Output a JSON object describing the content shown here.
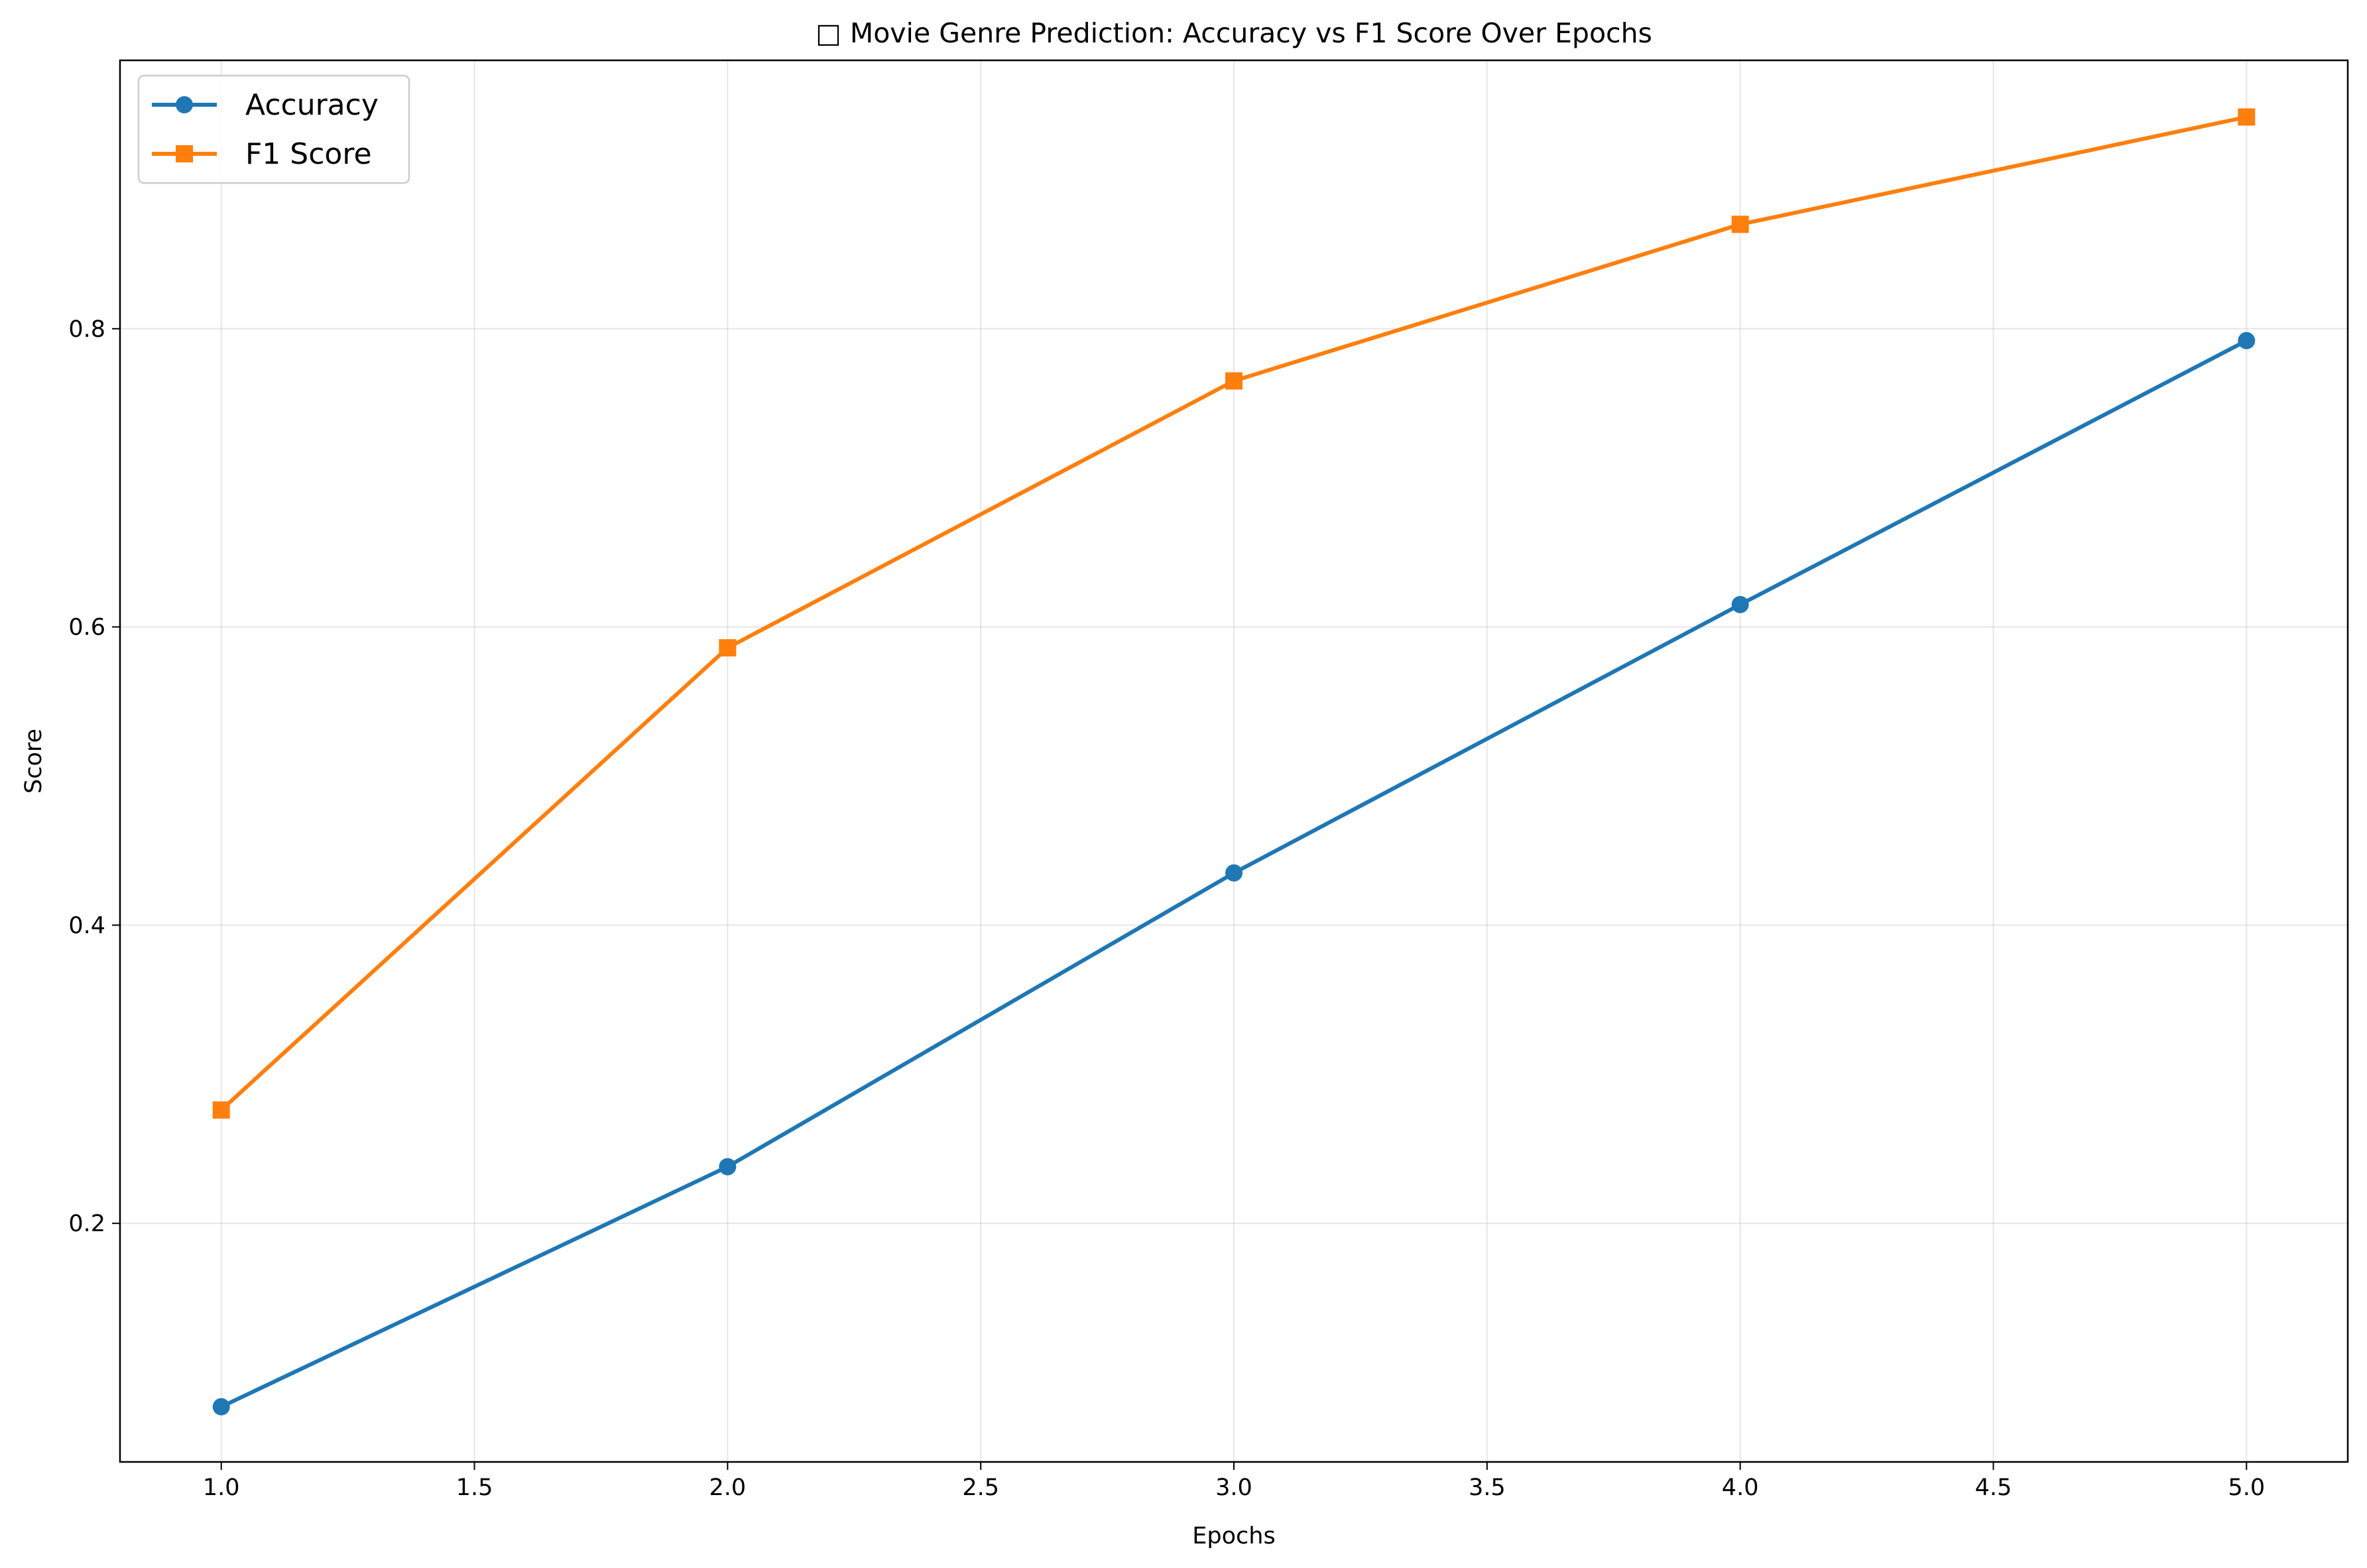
{
  "chart_data": {
    "type": "line",
    "title": "□ Movie Genre Prediction: Accuracy vs F1 Score Over Epochs",
    "xlabel": "Epochs",
    "ylabel": "Score",
    "xlim": [
      0.8,
      5.2
    ],
    "ylim": [
      0.04,
      0.98
    ],
    "x": [
      1,
      2,
      3,
      4,
      5
    ],
    "xticks": [
      "1.0",
      "1.5",
      "2.0",
      "2.5",
      "3.0",
      "3.5",
      "4.0",
      "4.5",
      "5.0"
    ],
    "yticks": [
      "0.2",
      "0.4",
      "0.6",
      "0.8"
    ],
    "grid": true,
    "legend_position": "top-left",
    "series": [
      {
        "name": "Accuracy",
        "values": [
          0.077,
          0.238,
          0.435,
          0.615,
          0.792
        ],
        "color": "#1f77b4",
        "marker": "circle"
      },
      {
        "name": "F1 Score",
        "values": [
          0.276,
          0.586,
          0.765,
          0.87,
          0.942
        ],
        "color": "#ff7f0e",
        "marker": "square"
      }
    ]
  }
}
